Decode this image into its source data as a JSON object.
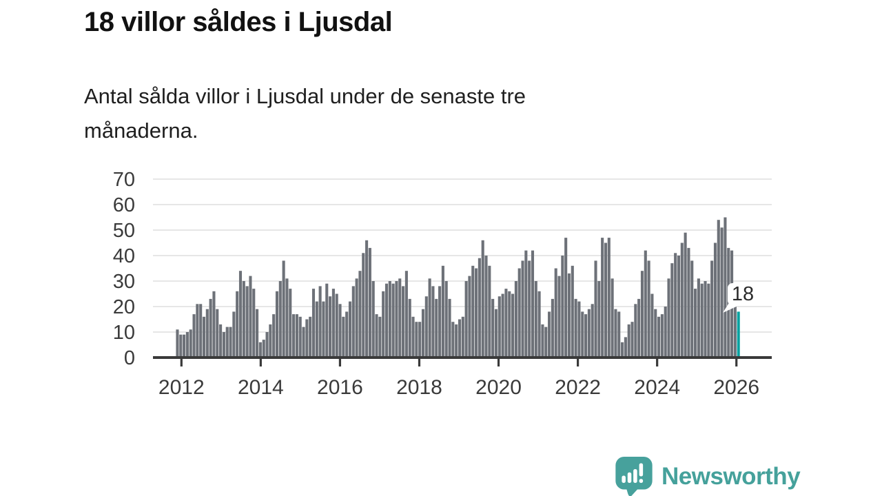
{
  "header": {
    "title": "18 villor såldes i Ljusdal",
    "subtitle": "Antal sålda villor i Ljusdal under de senaste tre\nmånaderna."
  },
  "footer": {
    "brand": "Newsworthy",
    "logo_icon": "speech-bubble-with-bar-chart-and-exclamation"
  },
  "colors": {
    "bar": "#6d7178",
    "highlight": "#0aa2a1",
    "brand": "#45a19b",
    "axis": "#3a3a3a",
    "axis_text": "#3a3a3a",
    "grid": "#dedede",
    "bubble": "#ffffff",
    "title_text": "#111111",
    "body_text": "#1f1f1f"
  },
  "chart_data": {
    "type": "bar",
    "title": "18 villor såldes i Ljusdal",
    "xlabel": "",
    "ylabel": "",
    "unit": "sålda villor (3-månadersperiod)",
    "period": "monthly",
    "x_start": "2012-01",
    "x_end": "2026-02",
    "x_ticks": [
      2012,
      2014,
      2016,
      2018,
      2020,
      2022,
      2024,
      2026
    ],
    "y_ticks": [
      0,
      10,
      20,
      30,
      40,
      50,
      60,
      70
    ],
    "ylim": [
      0,
      70
    ],
    "grid": true,
    "legend": false,
    "highlight_last": true,
    "highlight_index": 169,
    "last_value_label": "18",
    "values": [
      11,
      9,
      9,
      10,
      11,
      17,
      21,
      21,
      16,
      19,
      23,
      26,
      19,
      13,
      10,
      12,
      12,
      18,
      26,
      34,
      30,
      28,
      32,
      27,
      19,
      6,
      7,
      10,
      13,
      17,
      26,
      30,
      38,
      31,
      27,
      17,
      17,
      16,
      12,
      15,
      16,
      27,
      22,
      28,
      22,
      29,
      24,
      27,
      25,
      21,
      16,
      18,
      22,
      28,
      31,
      34,
      41,
      46,
      43,
      30,
      17,
      16,
      26,
      29,
      30,
      29,
      30,
      31,
      28,
      34,
      23,
      16,
      14,
      14,
      19,
      24,
      31,
      28,
      23,
      28,
      36,
      30,
      23,
      14,
      13,
      15,
      16,
      30,
      32,
      36,
      35,
      39,
      46,
      40,
      36,
      23,
      19,
      24,
      25,
      27,
      26,
      25,
      30,
      35,
      38,
      42,
      38,
      42,
      30,
      26,
      13,
      12,
      18,
      23,
      35,
      32,
      40,
      47,
      33,
      36,
      23,
      22,
      18,
      17,
      19,
      21,
      38,
      30,
      47,
      45,
      47,
      31,
      19,
      18,
      6,
      8,
      13,
      14,
      21,
      23,
      34,
      42,
      38,
      25,
      19,
      16,
      17,
      20,
      31,
      37,
      41,
      40,
      45,
      49,
      43,
      38,
      27,
      31,
      29,
      30,
      29,
      38,
      45,
      54,
      51,
      55,
      43,
      42,
      20,
      18
    ]
  }
}
